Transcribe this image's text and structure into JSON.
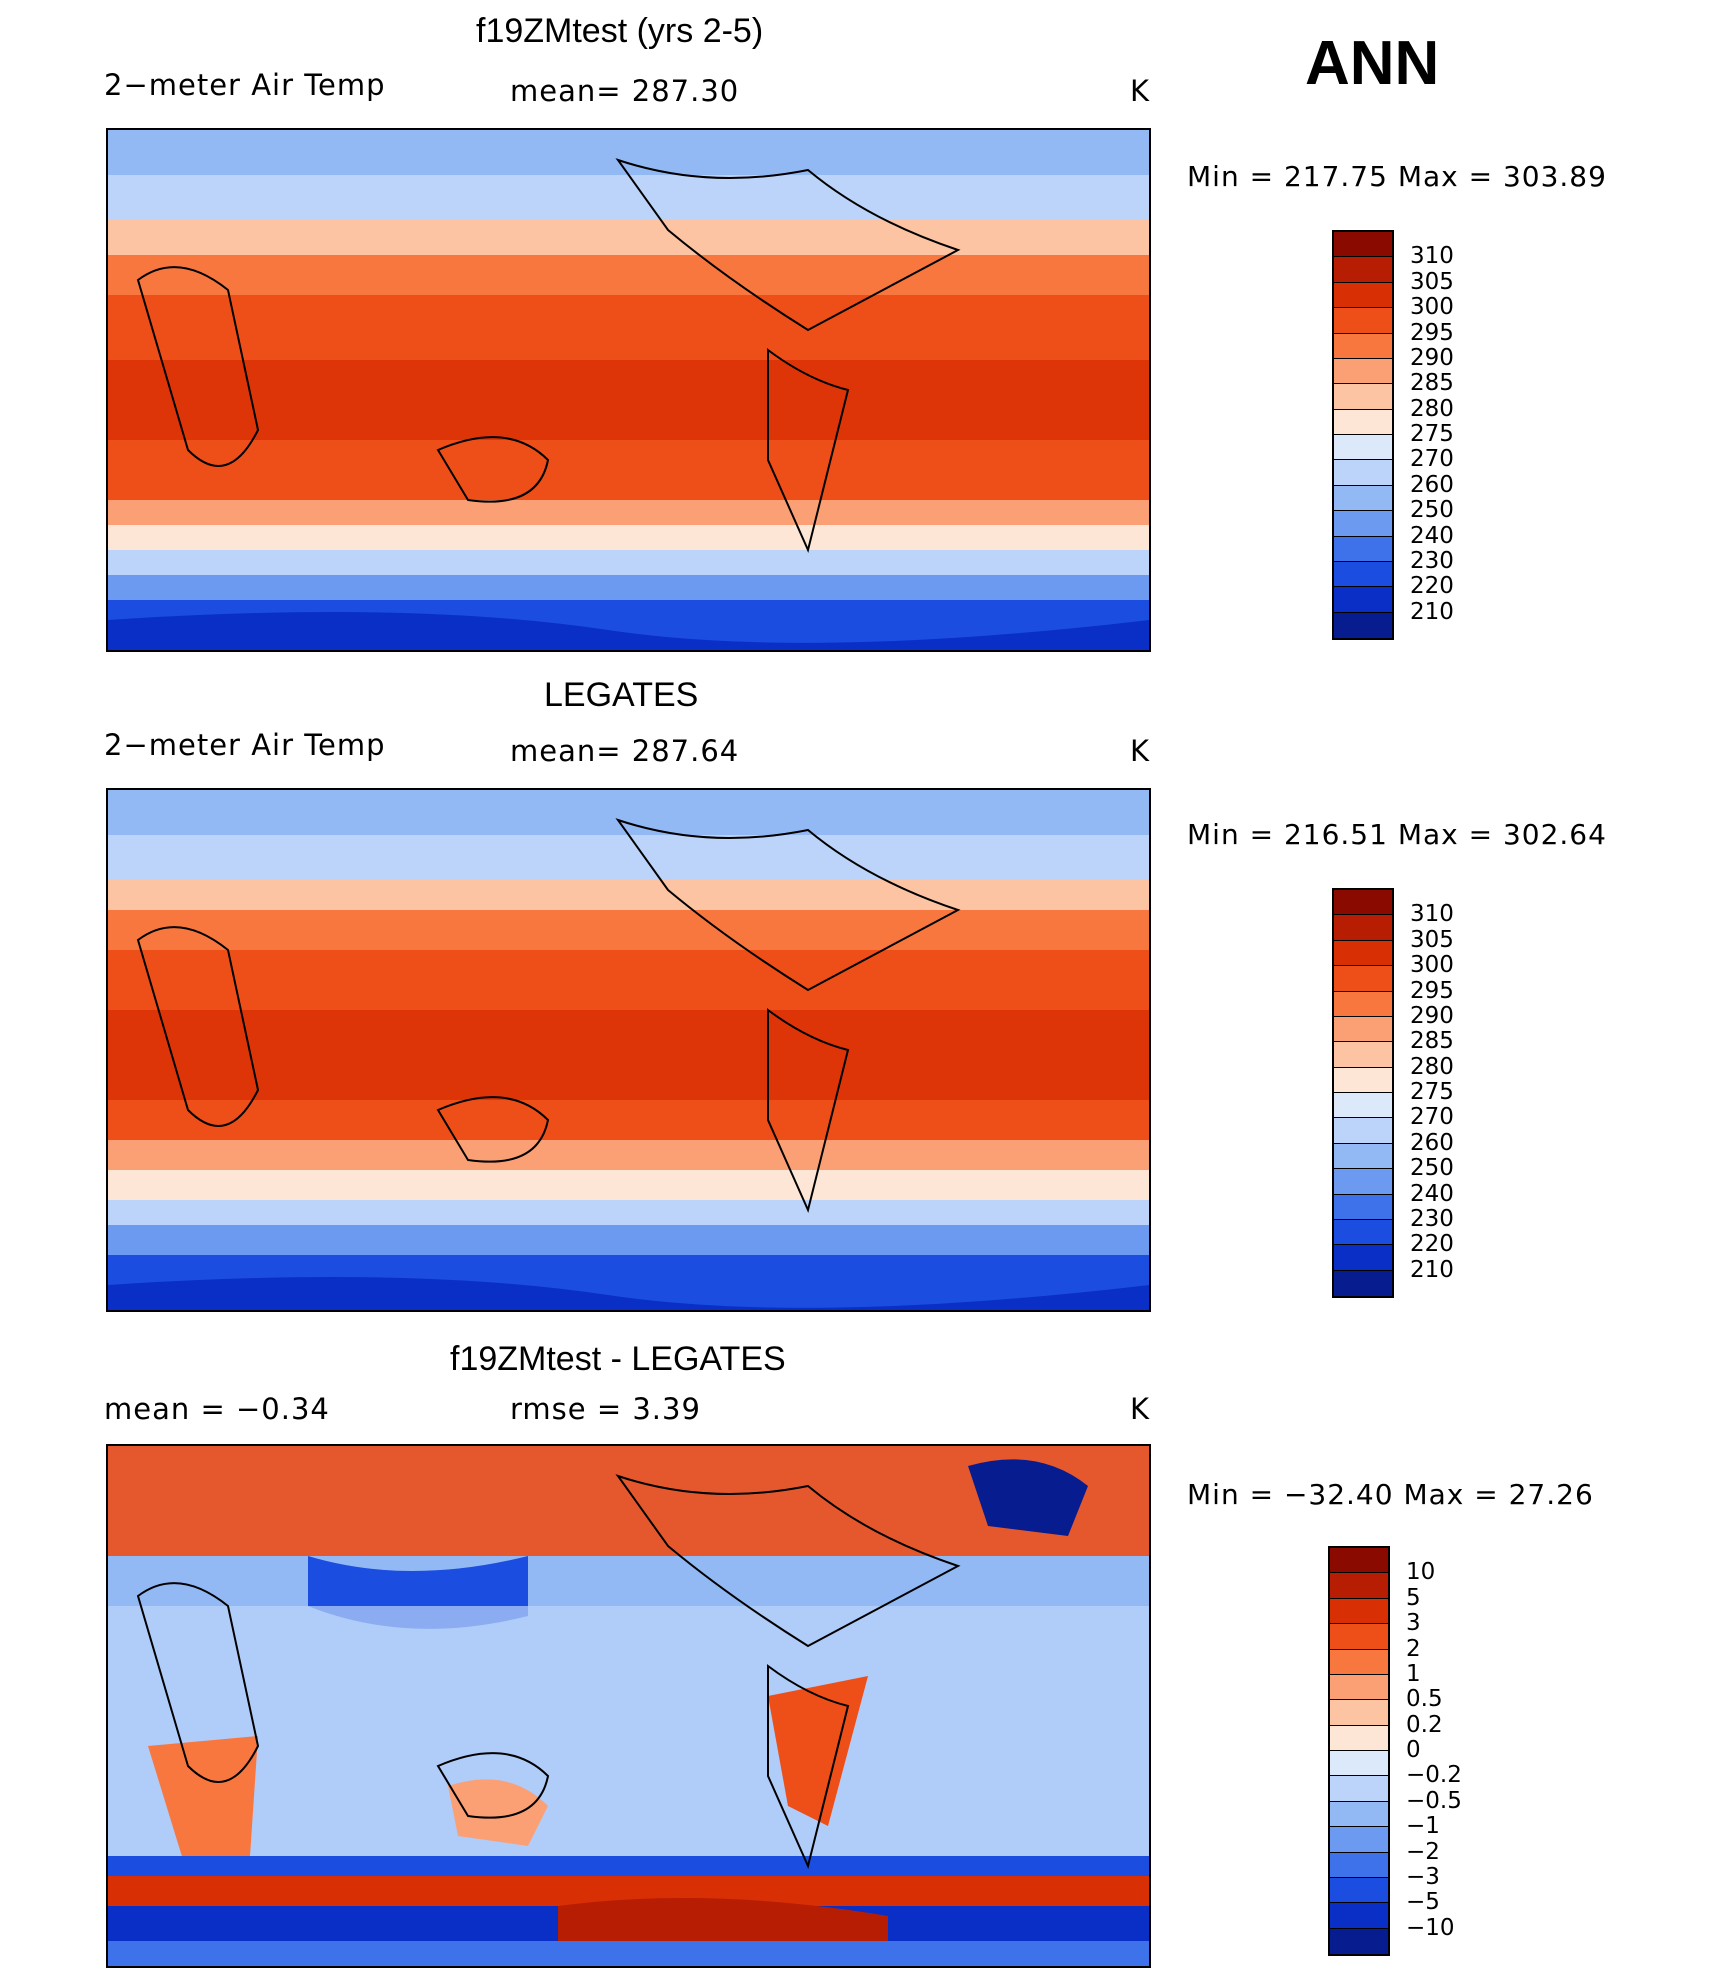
{
  "header": {
    "season": "ANN"
  },
  "panels": [
    {
      "id": "model",
      "title": "f19ZMtest (yrs 2-5)",
      "left_text": "2−meter Air Temp",
      "mid_text": "mean=  287.30",
      "unit": "K",
      "minmax": "Min  =  217.75  Max  =  303.89"
    },
    {
      "id": "obs",
      "title": "LEGATES",
      "left_text": "2−meter Air Temp",
      "mid_text": "mean=  287.64",
      "unit": "K",
      "minmax": "Min  =  216.51  Max  =  302.64"
    },
    {
      "id": "diff",
      "title": "f19ZMtest - LEGATES",
      "left_text": "mean  =    −0.34",
      "mid_text": "rmse  =     3.39",
      "unit": "K",
      "minmax": "Min  =  −32.40  Max  =    27.26"
    }
  ],
  "colorbars": {
    "temp": {
      "labels": [
        "310",
        "305",
        "300",
        "295",
        "290",
        "285",
        "280",
        "275",
        "270",
        "260",
        "250",
        "240",
        "230",
        "220",
        "210"
      ],
      "colors": [
        "#8b0a00",
        "#b71d03",
        "#d92f05",
        "#ee4e17",
        "#f8773f",
        "#fba075",
        "#fcc4a3",
        "#fde6d5",
        "#dbe9fb",
        "#bcd4f9",
        "#93b9f5",
        "#6c9af0",
        "#3e72ea",
        "#1b4de0",
        "#0a2fc6",
        "#071c8e"
      ]
    },
    "diff": {
      "labels": [
        "10",
        "5",
        "3",
        "2",
        "1",
        "0.5",
        "0.2",
        "0",
        "−0.2",
        "−0.5",
        "−1",
        "−2",
        "−3",
        "−5",
        "−10"
      ],
      "colors": [
        "#8b0a00",
        "#b71d03",
        "#d92f05",
        "#ee4e17",
        "#f8773f",
        "#fba075",
        "#fcc4a3",
        "#fde6d5",
        "#dbe9fb",
        "#bcd4f9",
        "#93b9f5",
        "#6c9af0",
        "#3e72ea",
        "#1b4de0",
        "#0a2fc6",
        "#071c8e"
      ]
    }
  }
}
